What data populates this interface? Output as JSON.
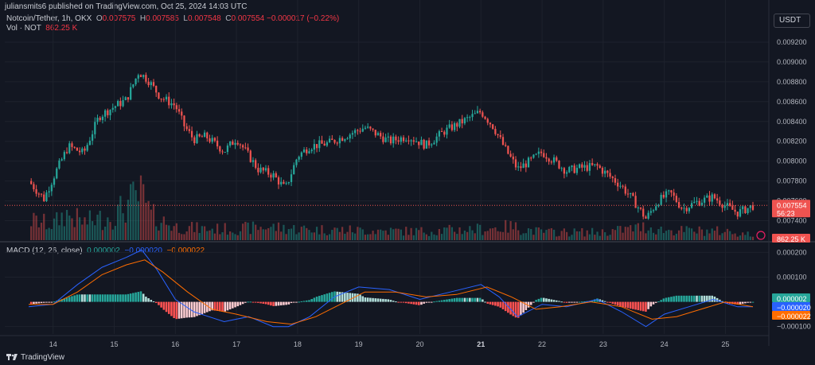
{
  "header": {
    "publish_line": "juliansmits6 published on TradingView.com, Oct 25, 2024 14:03 UTC",
    "symbol": "Notcoin/Tether, 1h, OKX",
    "open_label": "O",
    "open": "0.007575",
    "high_label": "H",
    "high": "0.007585",
    "low_label": "L",
    "low": "0.007548",
    "close_label": "C",
    "close": "0.007554",
    "change": "−0.000017 (−0.22%)",
    "vol_label": "Vol · NOT",
    "vol": "862.25 K"
  },
  "currency_button": "USDT",
  "brand": "TradingView",
  "colors": {
    "background": "#131722",
    "up": "#26a69a",
    "down": "#ef5350",
    "macd": "#2962ff",
    "signal": "#ff6d00",
    "grid": "#1e222d"
  },
  "chart_data": [
    {
      "type": "candlestick",
      "symbol": "Notcoin/Tether",
      "interval": "1h",
      "exchange": "OKX",
      "y_range": [
        0.0073,
        0.0094
      ],
      "y_ticks": [
        "0.007400",
        "0.007600",
        "0.007800",
        "0.008000",
        "0.008200",
        "0.008400",
        "0.008600",
        "0.008800",
        "0.009000",
        "0.009200"
      ],
      "x_ticks": [
        "14",
        "15",
        "16",
        "17",
        "18",
        "19",
        "20",
        "21",
        "22",
        "23",
        "24",
        "25"
      ],
      "last_price": "0.007554",
      "countdown": "56:23",
      "grid": true,
      "close_path": [
        [
          13.6,
          0.0078
        ],
        [
          13.85,
          0.00762
        ],
        [
          14.05,
          0.0079
        ],
        [
          14.25,
          0.00815
        ],
        [
          14.5,
          0.00808
        ],
        [
          14.75,
          0.00845
        ],
        [
          15.0,
          0.00855
        ],
        [
          15.2,
          0.00862
        ],
        [
          15.4,
          0.0089
        ],
        [
          15.55,
          0.00882
        ],
        [
          15.75,
          0.00865
        ],
        [
          16.0,
          0.00856
        ],
        [
          16.15,
          0.00835
        ],
        [
          16.3,
          0.00822
        ],
        [
          16.5,
          0.00825
        ],
        [
          16.8,
          0.0081
        ],
        [
          17.0,
          0.00823
        ],
        [
          17.15,
          0.0081
        ],
        [
          17.35,
          0.00792
        ],
        [
          17.6,
          0.00786
        ],
        [
          17.8,
          0.00772
        ],
        [
          18.0,
          0.00805
        ],
        [
          18.2,
          0.00815
        ],
        [
          18.5,
          0.00818
        ],
        [
          18.8,
          0.00826
        ],
        [
          19.1,
          0.00834
        ],
        [
          19.5,
          0.0082
        ],
        [
          19.8,
          0.00825
        ],
        [
          20.1,
          0.00816
        ],
        [
          20.4,
          0.0083
        ],
        [
          20.7,
          0.0084
        ],
        [
          21.0,
          0.0085
        ],
        [
          21.2,
          0.00835
        ],
        [
          21.4,
          0.00812
        ],
        [
          21.6,
          0.00792
        ],
        [
          21.8,
          0.008
        ],
        [
          22.0,
          0.00809
        ],
        [
          22.2,
          0.008
        ],
        [
          22.4,
          0.0079
        ],
        [
          22.6,
          0.00793
        ],
        [
          22.9,
          0.00795
        ],
        [
          23.1,
          0.00785
        ],
        [
          23.3,
          0.00775
        ],
        [
          23.5,
          0.0076
        ],
        [
          23.7,
          0.00742
        ],
        [
          23.9,
          0.0076
        ],
        [
          24.1,
          0.00768
        ],
        [
          24.3,
          0.00752
        ],
        [
          24.5,
          0.00758
        ],
        [
          24.8,
          0.00764
        ],
        [
          25.0,
          0.00755
        ],
        [
          25.2,
          0.00748
        ],
        [
          25.45,
          0.00755
        ]
      ]
    },
    {
      "type": "bar",
      "name": "Vol · NOT",
      "last_value": "862.25 K",
      "volume_profile": [
        [
          13.6,
          0.45
        ],
        [
          14.0,
          0.35
        ],
        [
          14.2,
          0.6
        ],
        [
          14.5,
          0.4
        ],
        [
          15.0,
          0.55
        ],
        [
          15.3,
          0.9
        ],
        [
          15.45,
          1.0
        ],
        [
          15.6,
          0.55
        ],
        [
          16.0,
          0.3
        ],
        [
          16.5,
          0.25
        ],
        [
          17.0,
          0.25
        ],
        [
          17.5,
          0.3
        ],
        [
          18.0,
          0.25
        ],
        [
          19.0,
          0.22
        ],
        [
          20.0,
          0.2
        ],
        [
          21.0,
          0.25
        ],
        [
          21.5,
          0.3
        ],
        [
          22.0,
          0.18
        ],
        [
          23.0,
          0.18
        ],
        [
          23.7,
          0.3
        ],
        [
          24.0,
          0.22
        ],
        [
          25.0,
          0.2
        ],
        [
          25.45,
          0.12
        ]
      ]
    },
    {
      "type": "line",
      "name": "MACD (12, 26, close)",
      "values_shown": {
        "histogram": "0.000002",
        "macd": "−0.000020",
        "signal": "−0.000022"
      },
      "y_range": [
        -0.00013,
        0.00024
      ],
      "y_ticks": [
        "0.000200",
        "0.000100",
        "−0.000100"
      ],
      "macd_path": [
        [
          13.6,
          -2e-05
        ],
        [
          14.0,
          -1e-05
        ],
        [
          14.4,
          7e-05
        ],
        [
          14.8,
          0.00014
        ],
        [
          15.2,
          0.00018
        ],
        [
          15.45,
          0.00021
        ],
        [
          15.7,
          0.00013
        ],
        [
          16.0,
          1e-05
        ],
        [
          16.3,
          -4e-05
        ],
        [
          16.8,
          -8e-05
        ],
        [
          17.2,
          -6e-05
        ],
        [
          17.6,
          -0.0001
        ],
        [
          17.85,
          -0.0001
        ],
        [
          18.2,
          -6e-05
        ],
        [
          18.6,
          2e-05
        ],
        [
          19.0,
          6e-05
        ],
        [
          19.5,
          5e-05
        ],
        [
          20.0,
          1e-05
        ],
        [
          20.5,
          4e-05
        ],
        [
          21.0,
          7e-05
        ],
        [
          21.3,
          2e-05
        ],
        [
          21.6,
          -6e-05
        ],
        [
          22.0,
          -1e-05
        ],
        [
          22.4,
          -2e-05
        ],
        [
          22.9,
          1e-05
        ],
        [
          23.3,
          -4e-05
        ],
        [
          23.7,
          -0.0001
        ],
        [
          24.0,
          -5e-05
        ],
        [
          24.4,
          -2e-05
        ],
        [
          24.8,
          1e-05
        ],
        [
          25.2,
          -2e-05
        ],
        [
          25.45,
          -2e-05
        ]
      ],
      "signal_path": [
        [
          13.6,
          -1e-05
        ],
        [
          14.0,
          -1e-05
        ],
        [
          14.4,
          4e-05
        ],
        [
          14.8,
          0.00011
        ],
        [
          15.2,
          0.00015
        ],
        [
          15.5,
          0.00017
        ],
        [
          15.8,
          0.00012
        ],
        [
          16.2,
          4e-05
        ],
        [
          16.6,
          -3e-05
        ],
        [
          17.0,
          -5e-05
        ],
        [
          17.5,
          -8e-05
        ],
        [
          17.9,
          -9e-05
        ],
        [
          18.3,
          -6e-05
        ],
        [
          18.7,
          -1e-05
        ],
        [
          19.1,
          4e-05
        ],
        [
          19.6,
          4e-05
        ],
        [
          20.1,
          2e-05
        ],
        [
          20.6,
          3e-05
        ],
        [
          21.1,
          6e-05
        ],
        [
          21.5,
          2e-05
        ],
        [
          21.9,
          -3e-05
        ],
        [
          22.3,
          -2e-05
        ],
        [
          22.8,
          0.0
        ],
        [
          23.3,
          -2e-05
        ],
        [
          23.8,
          -7e-05
        ],
        [
          24.2,
          -6e-05
        ],
        [
          24.6,
          -3e-05
        ],
        [
          25.0,
          0.0
        ],
        [
          25.45,
          -2e-05
        ]
      ]
    }
  ]
}
